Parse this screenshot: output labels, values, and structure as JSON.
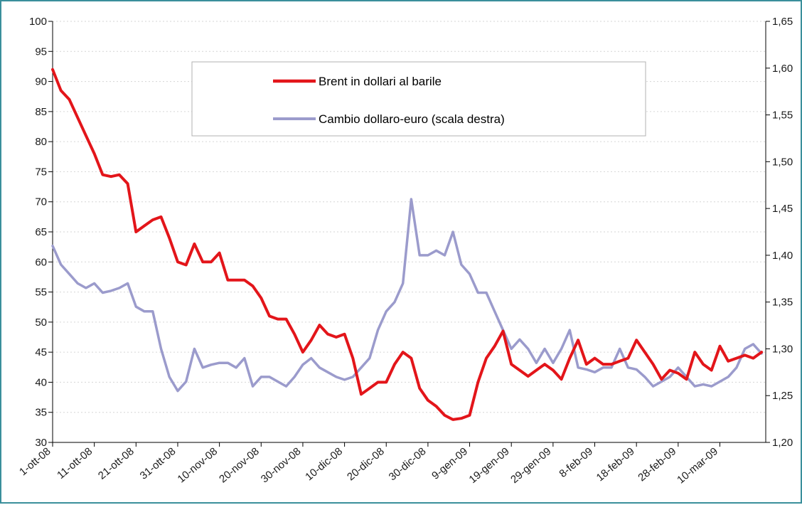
{
  "chart_data": {
    "type": "line",
    "title": "",
    "xlabel": "",
    "ylabel": "",
    "x_tick_labels": [
      "1-ott-08",
      "11-ott-08",
      "21-ott-08",
      "31-ott-08",
      "10-nov-08",
      "20-nov-08",
      "30-nov-08",
      "10-dic-08",
      "20-dic-08",
      "30-dic-08",
      "9-gen-09",
      "19-gen-09",
      "29-gen-09",
      "8-feb-09",
      "18-feb-09",
      "28-feb-09",
      "10-mar-09"
    ],
    "y_left": {
      "range": [
        30,
        100
      ],
      "ticks": [
        "30",
        "35",
        "40",
        "45",
        "50",
        "55",
        "60",
        "65",
        "70",
        "75",
        "80",
        "85",
        "90",
        "95",
        "100"
      ]
    },
    "y_right": {
      "range": [
        1.2,
        1.65
      ],
      "ticks": [
        "1,20",
        "1,25",
        "1,30",
        "1,35",
        "1,40",
        "1,45",
        "1,50",
        "1,55",
        "1,60",
        "1,65"
      ]
    },
    "grid": "horizontal dotted",
    "legend_position": "top-center",
    "x_dates": [
      "2008-10-01",
      "2008-10-03",
      "2008-10-05",
      "2008-10-07",
      "2008-10-09",
      "2008-10-11",
      "2008-10-13",
      "2008-10-15",
      "2008-10-17",
      "2008-10-19",
      "2008-10-21",
      "2008-10-23",
      "2008-10-25",
      "2008-10-27",
      "2008-10-29",
      "2008-10-31",
      "2008-11-02",
      "2008-11-04",
      "2008-11-06",
      "2008-11-08",
      "2008-11-10",
      "2008-11-12",
      "2008-11-14",
      "2008-11-16",
      "2008-11-18",
      "2008-11-20",
      "2008-11-22",
      "2008-11-24",
      "2008-11-26",
      "2008-11-28",
      "2008-11-30",
      "2008-12-02",
      "2008-12-04",
      "2008-12-06",
      "2008-12-08",
      "2008-12-10",
      "2008-12-12",
      "2008-12-14",
      "2008-12-16",
      "2008-12-18",
      "2008-12-20",
      "2008-12-22",
      "2008-12-24",
      "2008-12-26",
      "2008-12-28",
      "2008-12-30",
      "2009-01-01",
      "2009-01-03",
      "2009-01-05",
      "2009-01-07",
      "2009-01-09",
      "2009-01-11",
      "2009-01-13",
      "2009-01-15",
      "2009-01-17",
      "2009-01-19",
      "2009-01-21",
      "2009-01-23",
      "2009-01-25",
      "2009-01-27",
      "2009-01-29",
      "2009-01-31",
      "2009-02-02",
      "2009-02-04",
      "2009-02-06",
      "2009-02-08",
      "2009-02-10",
      "2009-02-12",
      "2009-02-14",
      "2009-02-16",
      "2009-02-18",
      "2009-02-20",
      "2009-02-22",
      "2009-02-24",
      "2009-02-26",
      "2009-02-28",
      "2009-03-02",
      "2009-03-04",
      "2009-03-06",
      "2009-03-08",
      "2009-03-10",
      "2009-03-12",
      "2009-03-14",
      "2009-03-16",
      "2009-03-18",
      "2009-03-20"
    ],
    "series": [
      {
        "name": "Brent in dollari al barile",
        "axis": "left",
        "color": "#e3151a",
        "values": [
          92,
          88.5,
          87,
          84,
          81,
          78,
          74.5,
          74.2,
          74.5,
          73,
          65,
          66,
          67,
          67.5,
          64,
          60,
          59.5,
          63,
          60,
          60,
          61.5,
          57,
          57,
          57,
          56,
          54,
          51,
          50.5,
          50.5,
          48,
          45,
          47,
          49.5,
          48,
          47.5,
          48,
          44,
          38,
          39,
          40,
          40,
          43,
          45,
          44,
          39,
          37,
          36,
          34.5,
          33.8,
          34,
          34.5,
          40,
          44,
          46,
          48.5,
          43,
          42,
          41,
          42,
          43,
          42,
          40.5,
          44,
          47,
          43,
          44,
          43,
          43,
          43.5,
          44,
          47,
          45,
          43,
          40.5,
          42,
          41.5,
          40.5,
          45,
          43,
          42,
          46,
          43.5,
          44,
          44.5,
          44,
          45
        ]
      },
      {
        "name": "Cambio dollaro-euro (scala destra)",
        "axis": "right",
        "color": "#9b9bcc",
        "values": [
          1.41,
          1.39,
          1.38,
          1.37,
          1.365,
          1.37,
          1.36,
          1.362,
          1.365,
          1.37,
          1.345,
          1.34,
          1.34,
          1.3,
          1.27,
          1.255,
          1.265,
          1.3,
          1.28,
          1.283,
          1.285,
          1.285,
          1.28,
          1.29,
          1.26,
          1.27,
          1.27,
          1.265,
          1.26,
          1.27,
          1.283,
          1.29,
          1.28,
          1.275,
          1.27,
          1.267,
          1.27,
          1.28,
          1.29,
          1.32,
          1.34,
          1.35,
          1.37,
          1.46,
          1.4,
          1.4,
          1.405,
          1.4,
          1.425,
          1.39,
          1.38,
          1.36,
          1.36,
          1.34,
          1.32,
          1.3,
          1.31,
          1.3,
          1.285,
          1.3,
          1.285,
          1.3,
          1.32,
          1.28,
          1.278,
          1.275,
          1.28,
          1.28,
          1.3,
          1.28,
          1.278,
          1.27,
          1.26,
          1.265,
          1.27,
          1.28,
          1.27,
          1.26,
          1.262,
          1.26,
          1.265,
          1.27,
          1.28,
          1.3,
          1.305,
          1.295
        ]
      }
    ]
  }
}
